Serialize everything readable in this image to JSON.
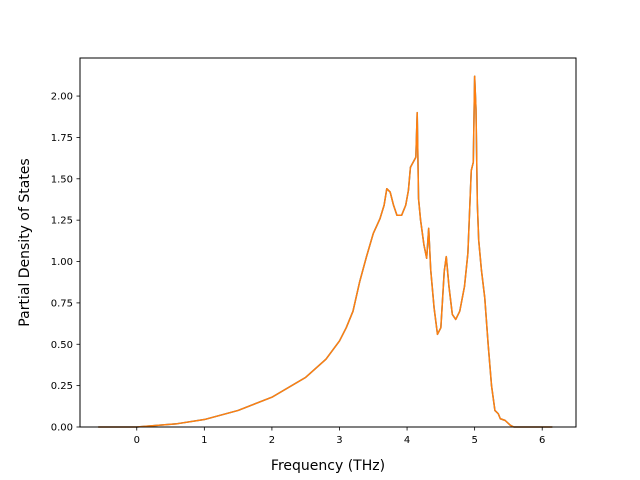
{
  "chart_data": {
    "type": "line",
    "title": "",
    "xlabel": "Frequency (THz)",
    "ylabel": "Partial Density of States",
    "xlim": [
      -0.84,
      6.5
    ],
    "ylim": [
      0,
      2.23
    ],
    "x_ticks": [
      0,
      1,
      2,
      3,
      4,
      5,
      6
    ],
    "x_tick_labels": [
      "0",
      "1",
      "2",
      "3",
      "4",
      "5",
      "6"
    ],
    "y_ticks": [
      0,
      0.25,
      0.5,
      0.75,
      1.0,
      1.25,
      1.5,
      1.75,
      2.0
    ],
    "y_tick_labels": [
      "0.00",
      "0.25",
      "0.50",
      "0.75",
      "1.00",
      "1.25",
      "1.50",
      "1.75",
      "2.00"
    ],
    "grid": false,
    "series": [
      {
        "color": "#1f77b4",
        "x": [
          -0.57,
          0.0,
          0.3,
          0.6,
          1.0,
          1.5,
          2.0,
          2.5,
          2.8,
          3.0,
          3.1,
          3.2,
          3.3,
          3.4,
          3.5,
          3.6,
          3.66,
          3.7,
          3.75,
          3.8,
          3.85,
          3.92,
          3.98,
          4.02,
          4.05,
          4.09,
          4.13,
          4.15,
          4.17,
          4.2,
          4.25,
          4.29,
          4.32,
          4.35,
          4.4,
          4.45,
          4.5,
          4.55,
          4.58,
          4.62,
          4.67,
          4.72,
          4.78,
          4.85,
          4.9,
          4.95,
          4.98,
          5.0,
          5.02,
          5.04,
          5.06,
          5.1,
          5.15,
          5.2,
          5.25,
          5.3,
          5.35,
          5.38,
          5.45,
          5.53,
          5.58,
          5.62,
          6.15
        ],
        "y": [
          0.0,
          0.0,
          0.01,
          0.02,
          0.045,
          0.1,
          0.18,
          0.3,
          0.41,
          0.52,
          0.6,
          0.7,
          0.88,
          1.03,
          1.17,
          1.26,
          1.34,
          1.44,
          1.42,
          1.34,
          1.28,
          1.28,
          1.34,
          1.43,
          1.57,
          1.6,
          1.63,
          1.9,
          1.38,
          1.25,
          1.1,
          1.02,
          1.2,
          0.95,
          0.72,
          0.56,
          0.6,
          0.94,
          1.03,
          0.85,
          0.68,
          0.65,
          0.7,
          0.85,
          1.05,
          1.55,
          1.6,
          2.12,
          1.92,
          1.35,
          1.13,
          0.95,
          0.78,
          0.5,
          0.25,
          0.1,
          0.08,
          0.05,
          0.04,
          0.01,
          0.0,
          0.0,
          0.0
        ]
      },
      {
        "color": "#ff7f0e",
        "x": [
          -0.57,
          0.0,
          0.3,
          0.6,
          1.0,
          1.5,
          2.0,
          2.5,
          2.8,
          3.0,
          3.1,
          3.2,
          3.3,
          3.4,
          3.5,
          3.6,
          3.66,
          3.7,
          3.75,
          3.8,
          3.85,
          3.92,
          3.98,
          4.02,
          4.05,
          4.09,
          4.13,
          4.15,
          4.17,
          4.2,
          4.25,
          4.29,
          4.32,
          4.35,
          4.4,
          4.45,
          4.5,
          4.55,
          4.58,
          4.62,
          4.67,
          4.72,
          4.78,
          4.85,
          4.9,
          4.95,
          4.98,
          5.0,
          5.02,
          5.04,
          5.06,
          5.1,
          5.15,
          5.2,
          5.25,
          5.3,
          5.35,
          5.38,
          5.45,
          5.53,
          5.58,
          5.62,
          6.15
        ],
        "y": [
          0.0,
          0.0,
          0.01,
          0.02,
          0.045,
          0.1,
          0.18,
          0.3,
          0.41,
          0.52,
          0.6,
          0.7,
          0.88,
          1.03,
          1.17,
          1.26,
          1.34,
          1.44,
          1.42,
          1.34,
          1.28,
          1.28,
          1.34,
          1.43,
          1.57,
          1.6,
          1.63,
          1.9,
          1.38,
          1.25,
          1.1,
          1.02,
          1.2,
          0.95,
          0.72,
          0.56,
          0.6,
          0.94,
          1.03,
          0.85,
          0.68,
          0.65,
          0.7,
          0.85,
          1.05,
          1.55,
          1.6,
          2.12,
          1.92,
          1.35,
          1.13,
          0.95,
          0.78,
          0.5,
          0.25,
          0.1,
          0.08,
          0.05,
          0.04,
          0.01,
          0.0,
          0.0,
          0.0
        ]
      }
    ]
  }
}
